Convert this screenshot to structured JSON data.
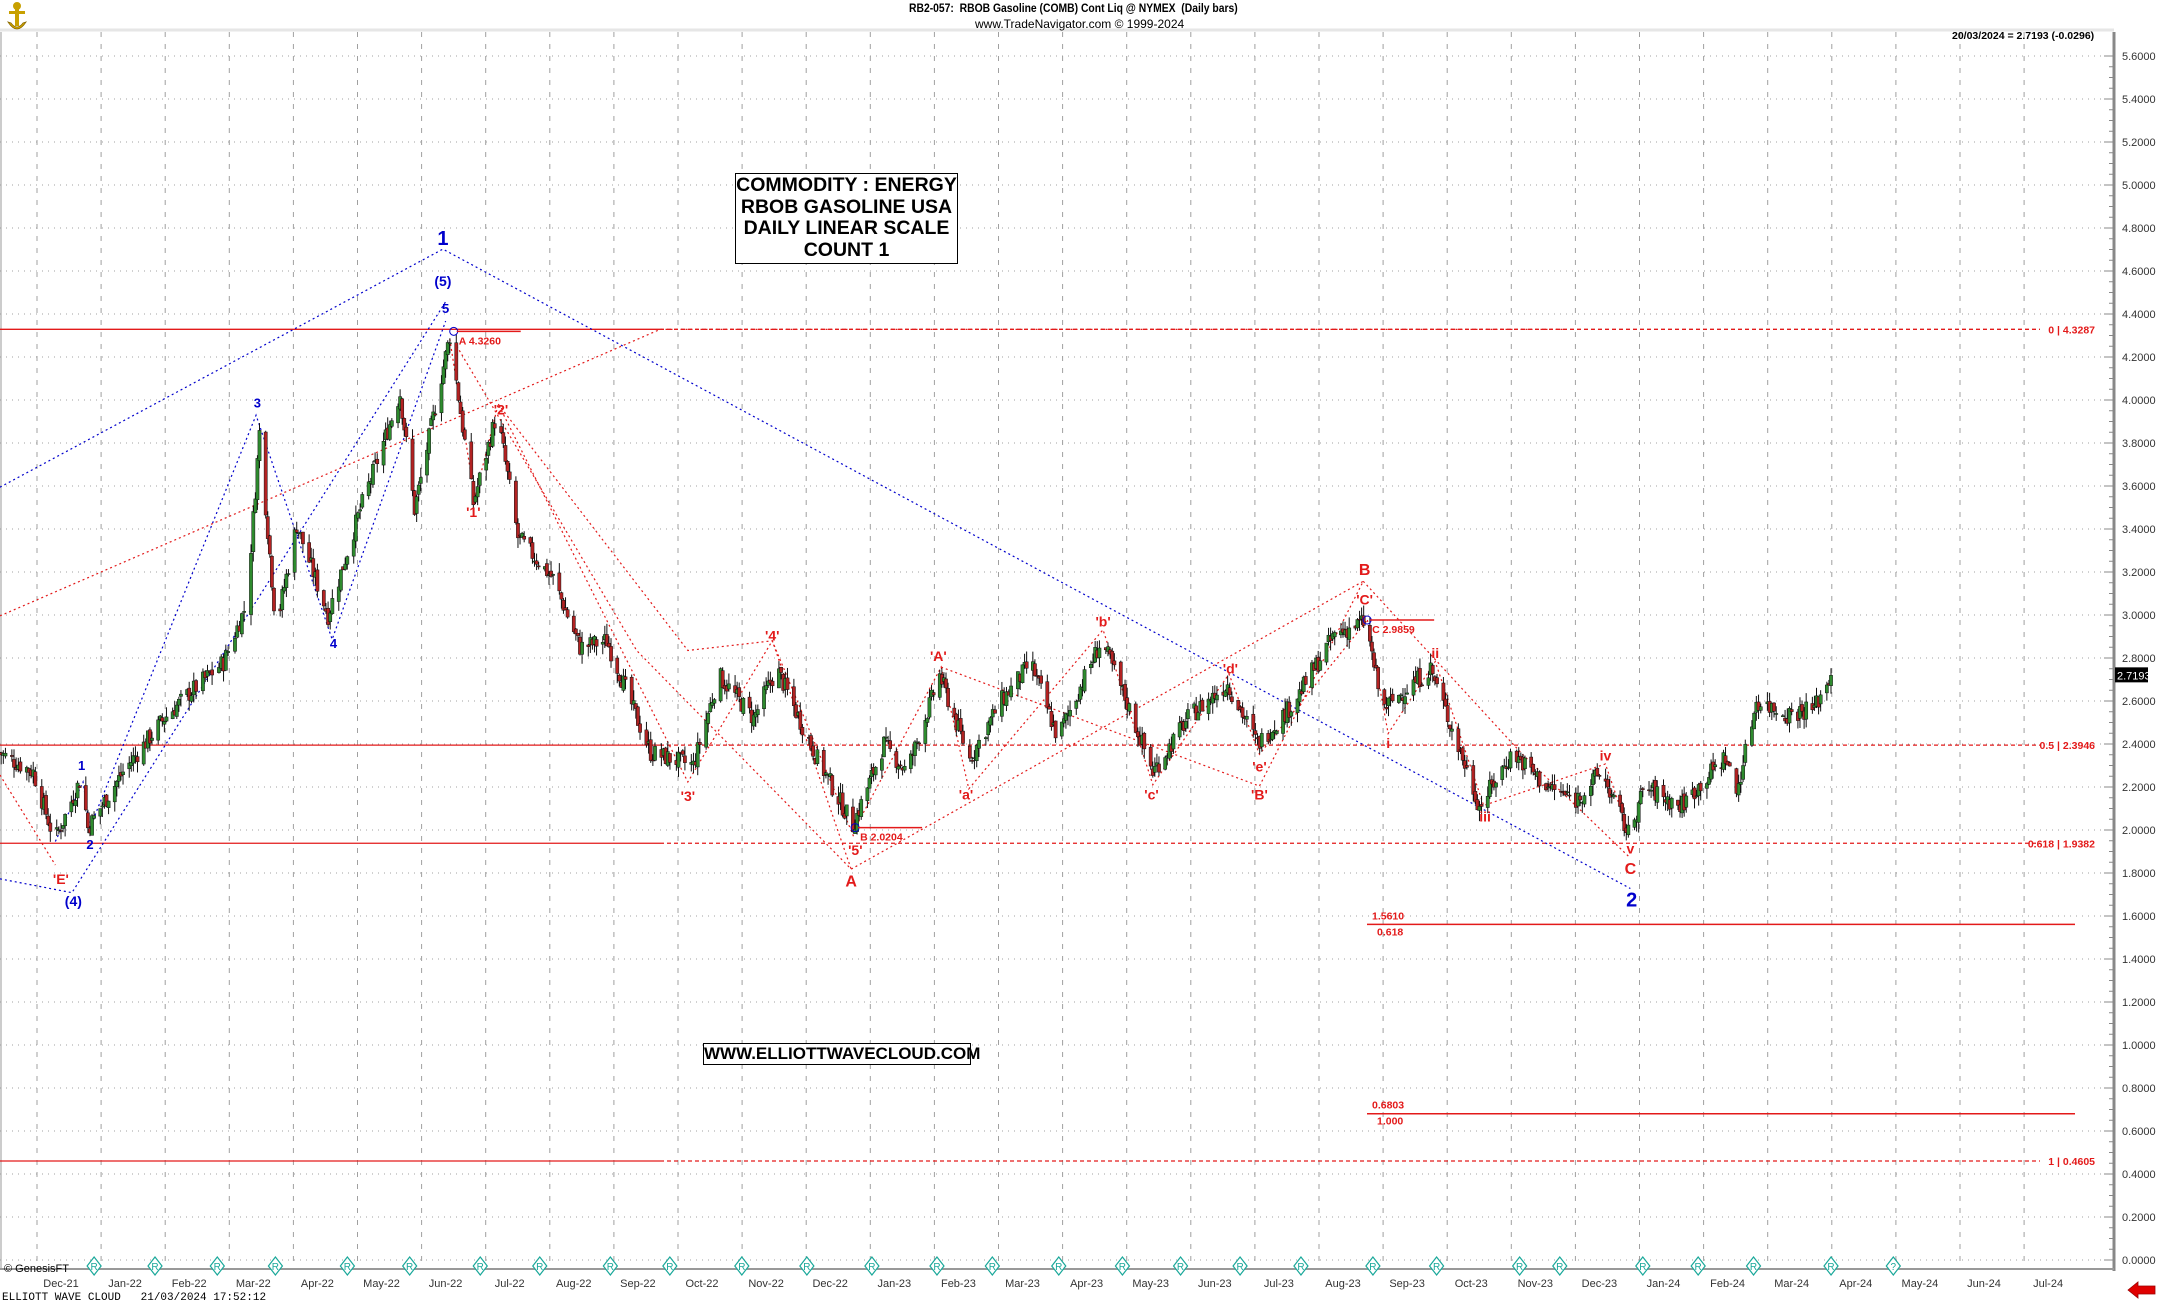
{
  "header": {
    "title": "RB2-057:  RBOB Gasoline (COMB) Cont Liq @ NYMEX  (Daily bars)",
    "subtitle": "www.TradeNavigator.com © 1999-2024",
    "last_quote": "20/03/2024 = 2.7193 (-0.0296)"
  },
  "annotation_box": {
    "line1": "COMMODITY : ENERGY",
    "line2": "RBOB GASOLINE USA",
    "line3": "DAILY LINEAR SCALE",
    "line4": "COUNT 1"
  },
  "website": "WWW.ELLIOTTWAVECLOUD.COM",
  "footer": {
    "copyright": "© GenesisFT",
    "status": "ELLIOTT WAVE CLOUD   21/03/2024 17:52:12"
  },
  "icons": {
    "logo": "gold-anchor-logo-icon",
    "scroll_arrow": "red-left-arrow-icon",
    "event_marker": "diamond-r-marker-icon"
  },
  "colors": {
    "up_bar": "#2e8b2e",
    "down_bar": "#b22222",
    "wave_blue": "#0000cc",
    "wave_red": "#e31a1a",
    "fib_red": "#e31a1a",
    "grid": "#a0a0a0"
  },
  "chart_data": {
    "type": "line",
    "bar_style": "daily OHLC candlestick bars",
    "y_axis": {
      "scale": "linear",
      "range": [
        0,
        5.6
      ],
      "ticks": [
        "0.0000",
        "0.2000",
        "0.4000",
        "0.6000",
        "0.8000",
        "1.0000",
        "1.2000",
        "1.4000",
        "1.6000",
        "1.8000",
        "2.0000",
        "2.2000",
        "2.4000",
        "2.6000",
        "2.8000",
        "3.0000",
        "3.2000",
        "3.4000",
        "3.6000",
        "3.8000",
        "4.0000",
        "4.2000",
        "4.4000",
        "4.6000",
        "4.8000",
        "5.0000",
        "5.2000",
        "5.4000",
        "5.6000"
      ]
    },
    "x_axis": {
      "ticks": [
        "Dec-21",
        "Jan-22",
        "Feb-22",
        "Mar-22",
        "Apr-22",
        "May-22",
        "Jun-22",
        "Jul-22",
        "Aug-22",
        "Sep-22",
        "Oct-22",
        "Nov-22",
        "Dec-22",
        "Jan-23",
        "Feb-23",
        "Mar-23",
        "Apr-23",
        "May-23",
        "Jun-23",
        "Jul-23",
        "Aug-23",
        "Sep-23",
        "Oct-23",
        "Nov-23",
        "Dec-23",
        "Jan-24",
        "Feb-24",
        "Mar-24",
        "Apr-24",
        "May-24",
        "Jun-24",
        "Jul-24"
      ]
    },
    "grid": true,
    "last_price": "2.7193",
    "price_path": [
      {
        "date": "2021-11-02",
        "close": 2.36
      },
      {
        "date": "2021-11-18",
        "close": 2.27
      },
      {
        "date": "2021-11-28",
        "close": 1.95
      },
      {
        "date": "2021-12-11",
        "close": 2.25
      },
      {
        "date": "2021-12-14",
        "close": 2.01
      },
      {
        "date": "2021-12-31",
        "close": 2.27
      },
      {
        "date": "2022-01-20",
        "close": 2.52
      },
      {
        "date": "2022-02-16",
        "close": 2.78
      },
      {
        "date": "2022-02-26",
        "close": 3.05
      },
      {
        "date": "2022-03-04",
        "close": 3.85
      },
      {
        "date": "2022-03-12",
        "close": 2.94
      },
      {
        "date": "2022-03-22",
        "close": 3.42
      },
      {
        "date": "2022-04-06",
        "close": 3.0
      },
      {
        "date": "2022-04-21",
        "close": 3.49
      },
      {
        "date": "2022-05-10",
        "close": 4.03
      },
      {
        "date": "2022-05-17",
        "close": 3.49
      },
      {
        "date": "2022-06-03",
        "close": 4.3
      },
      {
        "date": "2022-06-14",
        "close": 3.52
      },
      {
        "date": "2022-06-25",
        "close": 3.94
      },
      {
        "date": "2022-07-05",
        "close": 3.36
      },
      {
        "date": "2022-07-22",
        "close": 3.17
      },
      {
        "date": "2022-08-04",
        "close": 2.85
      },
      {
        "date": "2022-08-17",
        "close": 2.88
      },
      {
        "date": "2022-09-07",
        "close": 2.36
      },
      {
        "date": "2022-09-27",
        "close": 2.3
      },
      {
        "date": "2022-10-09",
        "close": 2.72
      },
      {
        "date": "2022-10-26",
        "close": 2.52
      },
      {
        "date": "2022-11-06",
        "close": 2.75
      },
      {
        "date": "2022-11-25",
        "close": 2.33
      },
      {
        "date": "2022-12-12",
        "close": 2.02
      },
      {
        "date": "2022-12-27",
        "close": 2.4
      },
      {
        "date": "2023-01-07",
        "close": 2.27
      },
      {
        "date": "2023-01-23",
        "close": 2.72
      },
      {
        "date": "2023-02-06",
        "close": 2.33
      },
      {
        "date": "2023-02-19",
        "close": 2.59
      },
      {
        "date": "2023-03-05",
        "close": 2.78
      },
      {
        "date": "2023-03-18",
        "close": 2.43
      },
      {
        "date": "2023-04-08",
        "close": 2.88
      },
      {
        "date": "2023-04-20",
        "close": 2.59
      },
      {
        "date": "2023-05-02",
        "close": 2.27
      },
      {
        "date": "2023-05-19",
        "close": 2.52
      },
      {
        "date": "2023-06-07",
        "close": 2.68
      },
      {
        "date": "2023-06-21",
        "close": 2.4
      },
      {
        "date": "2023-07-08",
        "close": 2.59
      },
      {
        "date": "2023-07-28",
        "close": 2.91
      },
      {
        "date": "2023-08-12",
        "close": 2.97
      },
      {
        "date": "2023-08-20",
        "close": 2.56
      },
      {
        "date": "2023-09-12",
        "close": 2.75
      },
      {
        "date": "2023-10-05",
        "close": 2.11
      },
      {
        "date": "2023-10-21",
        "close": 2.36
      },
      {
        "date": "2023-11-07",
        "close": 2.2
      },
      {
        "date": "2023-11-20",
        "close": 2.14
      },
      {
        "date": "2023-12-02",
        "close": 2.27
      },
      {
        "date": "2023-12-15",
        "close": 1.98
      },
      {
        "date": "2023-12-23",
        "close": 2.2
      },
      {
        "date": "2024-01-09",
        "close": 2.11
      },
      {
        "date": "2024-01-31",
        "close": 2.34
      },
      {
        "date": "2024-02-05",
        "close": 2.17
      },
      {
        "date": "2024-02-09",
        "close": 2.36
      },
      {
        "date": "2024-02-14",
        "close": 2.6
      },
      {
        "date": "2024-02-28",
        "close": 2.54
      },
      {
        "date": "2024-03-12",
        "close": 2.57
      },
      {
        "date": "2024-03-20",
        "close": 2.7193
      }
    ],
    "fib_levels": [
      {
        "label": "0 | 4.3287",
        "value": 4.3287
      },
      {
        "label": "0.5 | 2.3946",
        "value": 2.3946
      },
      {
        "label": "0.618 | 1.9382",
        "value": 1.9382
      },
      {
        "label": "1 | 0.4605",
        "value": 0.4605
      }
    ],
    "projections": [
      {
        "value_label": "1.5610",
        "ratio_label": "0.618",
        "value": 1.561
      },
      {
        "value_label": "0.6803",
        "ratio_label": "1.000",
        "value": 0.6803
      }
    ],
    "price_tags": [
      "A 4.3260",
      "B 2.0204",
      "C 2.9859"
    ],
    "wave_labels_blue": [
      "1",
      "(5)",
      "5",
      "3",
      "4",
      "1",
      "2",
      "(4)",
      "2"
    ],
    "wave_labels_red": [
      "'E'",
      "'1'",
      "'2'",
      "'3'",
      "'4'",
      "'5'",
      "A",
      "'A'",
      "'a'",
      "'b'",
      "'c'",
      "'d'",
      "'e'",
      "'B'",
      "B",
      "'C'",
      "i",
      "ii",
      "iii",
      "iv",
      "v",
      "C"
    ],
    "event_marker_label": "R",
    "event_marker_future_label": "?"
  }
}
